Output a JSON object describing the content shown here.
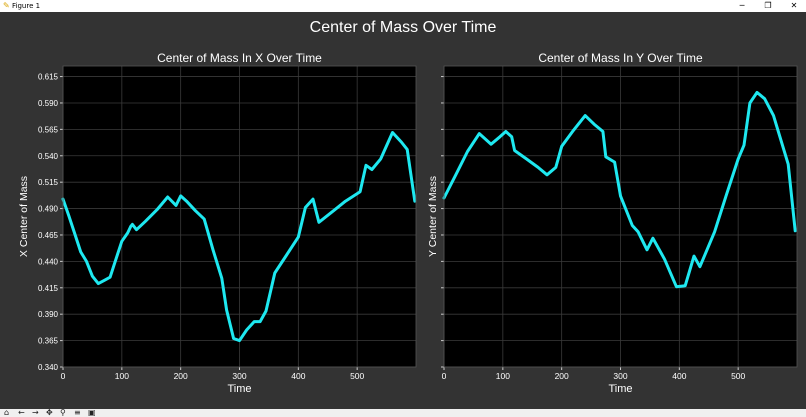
{
  "window": {
    "title": "Figure 1",
    "minimize_glyph": "─",
    "maximize_glyph": "❐",
    "close_glyph": "✕"
  },
  "toolbar": {
    "icons": [
      {
        "name": "home-icon",
        "glyph": "⌂"
      },
      {
        "name": "back-icon",
        "glyph": "←"
      },
      {
        "name": "forward-icon",
        "glyph": "→"
      },
      {
        "name": "pan-icon",
        "glyph": "✥"
      },
      {
        "name": "zoom-icon",
        "glyph": "⚲"
      },
      {
        "name": "configure-icon",
        "glyph": "≡"
      },
      {
        "name": "save-icon",
        "glyph": "▣"
      }
    ]
  },
  "chart_data": {
    "suptitle": "Center of Mass Over Time",
    "colors": {
      "figure_bg": "#333333",
      "axes_bg": "#000000",
      "line": "#1ee8f0",
      "text": "#ffffff",
      "grid": "#3a3a3a"
    },
    "panels": [
      {
        "id": "x",
        "type": "line",
        "title": "Center of Mass In X Over Time",
        "xlabel": "Time",
        "ylabel": "X Center of Mass",
        "xlim": [
          0,
          600
        ],
        "ylim": [
          0.34,
          0.625
        ],
        "xticks": [
          0,
          100,
          200,
          300,
          400,
          500
        ],
        "yticks": [
          0.34,
          0.365,
          0.39,
          0.415,
          0.44,
          0.465,
          0.49,
          0.515,
          0.54,
          0.565,
          0.59,
          0.615
        ],
        "ytick_labels": [
          "0.340",
          "0.365",
          "0.390",
          "0.415",
          "0.440",
          "0.465",
          "0.490",
          "0.515",
          "0.540",
          "0.565",
          "0.590",
          "0.615"
        ],
        "show_ytick_labels": true,
        "grid": true,
        "x": [
          0,
          10,
          20,
          30,
          40,
          50,
          60,
          70,
          80,
          90,
          100,
          110,
          115,
          118,
          125,
          140,
          160,
          178,
          192,
          200,
          210,
          225,
          240,
          255,
          270,
          278,
          290,
          300,
          312,
          325,
          335,
          345,
          360,
          380,
          400,
          412,
          425,
          435,
          460,
          480,
          505,
          515,
          525,
          540,
          560,
          575,
          585,
          598
        ],
        "y": [
          0.499,
          0.483,
          0.466,
          0.449,
          0.44,
          0.426,
          0.419,
          0.422,
          0.425,
          0.442,
          0.459,
          0.467,
          0.473,
          0.475,
          0.47,
          0.478,
          0.489,
          0.501,
          0.493,
          0.502,
          0.497,
          0.488,
          0.48,
          0.451,
          0.424,
          0.394,
          0.367,
          0.365,
          0.375,
          0.383,
          0.383,
          0.393,
          0.429,
          0.446,
          0.463,
          0.491,
          0.499,
          0.477,
          0.488,
          0.497,
          0.506,
          0.531,
          0.527,
          0.537,
          0.562,
          0.553,
          0.546,
          0.497
        ]
      },
      {
        "id": "y",
        "type": "line",
        "title": "Center of Mass In Y Over Time",
        "xlabel": "Time",
        "ylabel": "Y Center of Mass",
        "xlim": [
          0,
          600
        ],
        "ylim": [
          0.34,
          0.625
        ],
        "xticks": [
          0,
          100,
          200,
          300,
          400,
          500
        ],
        "yticks": [
          0.34,
          0.365,
          0.39,
          0.415,
          0.44,
          0.465,
          0.49,
          0.515,
          0.54,
          0.565,
          0.59,
          0.615
        ],
        "ytick_labels": [],
        "show_ytick_labels": false,
        "grid": true,
        "x": [
          0,
          20,
          40,
          60,
          80,
          95,
          105,
          115,
          120,
          140,
          160,
          175,
          190,
          200,
          220,
          240,
          255,
          270,
          275,
          290,
          300,
          320,
          330,
          345,
          355,
          375,
          395,
          410,
          425,
          435,
          460,
          480,
          500,
          510,
          520,
          532,
          545,
          560,
          585,
          597
        ],
        "y": [
          0.5,
          0.522,
          0.544,
          0.561,
          0.551,
          0.558,
          0.563,
          0.558,
          0.545,
          0.537,
          0.529,
          0.522,
          0.529,
          0.549,
          0.564,
          0.578,
          0.57,
          0.563,
          0.539,
          0.534,
          0.502,
          0.474,
          0.468,
          0.451,
          0.462,
          0.442,
          0.416,
          0.417,
          0.445,
          0.435,
          0.468,
          0.503,
          0.537,
          0.55,
          0.59,
          0.6,
          0.594,
          0.578,
          0.532,
          0.469
        ]
      }
    ]
  }
}
